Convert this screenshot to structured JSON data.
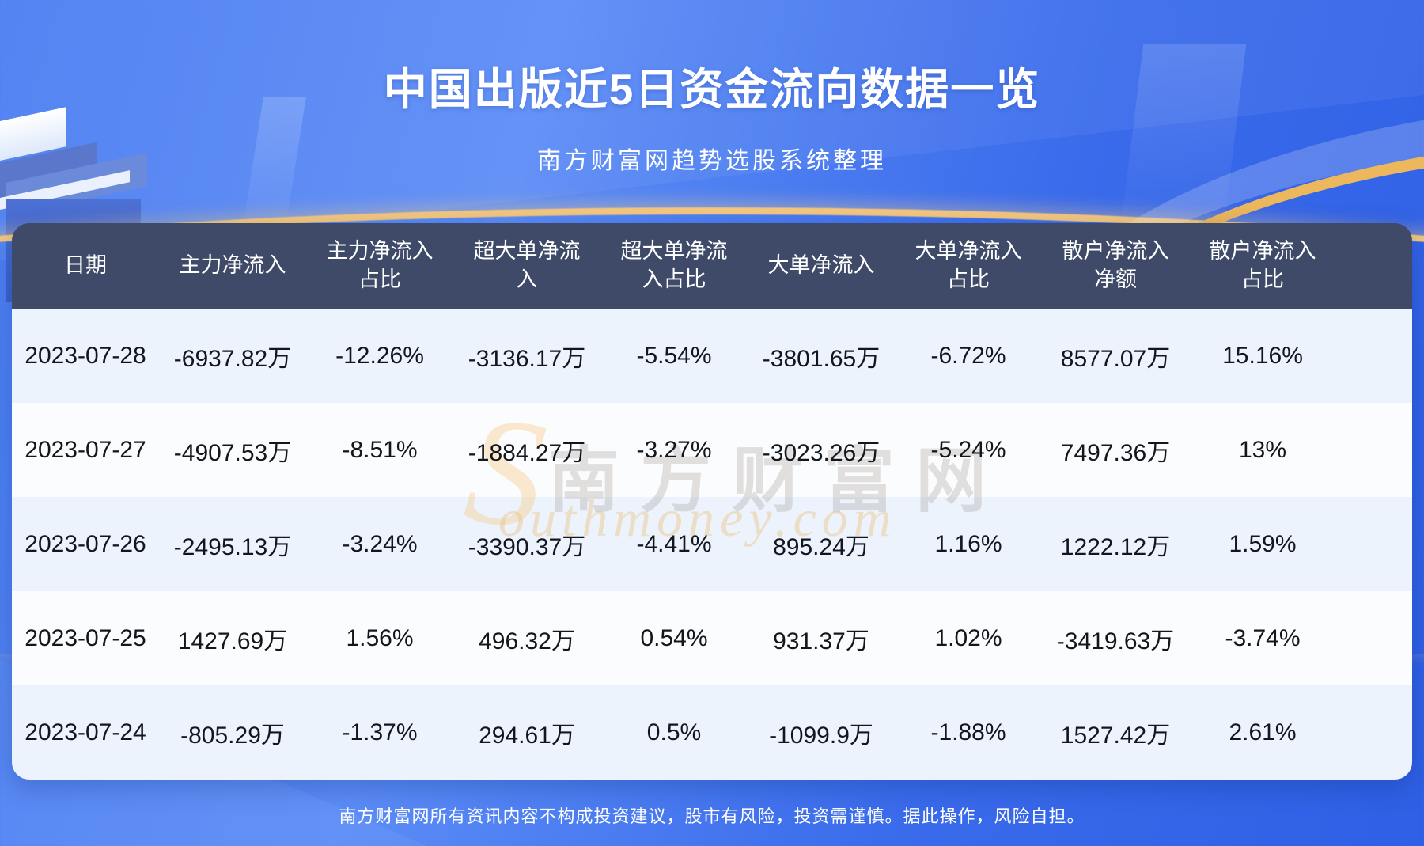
{
  "header": {
    "title": "中国出版近5日资金流向数据一览",
    "subtitle": "南方财富网趋势选股系统整理"
  },
  "watermark": {
    "initial": "S",
    "cn": "南方财富网",
    "en": "outhmoney.com"
  },
  "footer": {
    "disclaimer": "南方财富网所有资讯内容不构成投资建议，股市有风险，投资需谨慎。据此操作，风险自担。"
  },
  "colors": {
    "header_bg": "#3e4a67",
    "row_odd": "#edf3fc",
    "row_even": "#fbfcfe",
    "accent_gold": "#f5c87e",
    "accent_gold_deep": "#ecb75d",
    "background_blue": "#3a6beb",
    "text_dark": "#13161c",
    "text_light": "#ffffff"
  },
  "chart_data": {
    "type": "table",
    "title": "中国出版近5日资金流向数据一览",
    "columns": [
      "日期",
      "主力净流入",
      "主力净流入占比",
      "超大单净流入",
      "超大单净流入占比",
      "大单净流入",
      "大单净流入占比",
      "散户净流入净额",
      "散户净流入占比"
    ],
    "rows": [
      [
        "2023-07-28",
        "-6937.82万",
        "-12.26%",
        "-3136.17万",
        "-5.54%",
        "-3801.65万",
        "-6.72%",
        "8577.07万",
        "15.16%"
      ],
      [
        "2023-07-27",
        "-4907.53万",
        "-8.51%",
        "-1884.27万",
        "-3.27%",
        "-3023.26万",
        "-5.24%",
        "7497.36万",
        "13%"
      ],
      [
        "2023-07-26",
        "-2495.13万",
        "-3.24%",
        "-3390.37万",
        "-4.41%",
        "895.24万",
        "1.16%",
        "1222.12万",
        "1.59%"
      ],
      [
        "2023-07-25",
        "1427.69万",
        "1.56%",
        "496.32万",
        "0.54%",
        "931.37万",
        "1.02%",
        "-3419.63万",
        "-3.74%"
      ],
      [
        "2023-07-24",
        "-805.29万",
        "-1.37%",
        "294.61万",
        "0.5%",
        "-1099.9万",
        "-1.88%",
        "1527.42万",
        "2.61%"
      ]
    ]
  }
}
